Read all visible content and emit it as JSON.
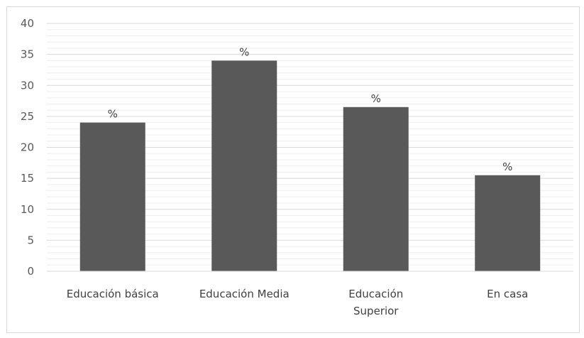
{
  "chart_data": {
    "type": "bar",
    "categories": [
      [
        "Educación básica"
      ],
      [
        "Educación Media"
      ],
      [
        "Educación",
        "Superior"
      ],
      [
        "En casa"
      ]
    ],
    "values": [
      24,
      34,
      26.5,
      15.5
    ],
    "data_labels": [
      "%",
      "%",
      "%",
      "%"
    ],
    "ylim": [
      0,
      40
    ],
    "yticks": [
      0,
      5,
      10,
      15,
      20,
      25,
      30,
      35,
      40
    ],
    "grid": true,
    "bar_color": "#595959",
    "grid_color": "#d9d9d9",
    "minor_grid_color": "#eeeeee"
  }
}
